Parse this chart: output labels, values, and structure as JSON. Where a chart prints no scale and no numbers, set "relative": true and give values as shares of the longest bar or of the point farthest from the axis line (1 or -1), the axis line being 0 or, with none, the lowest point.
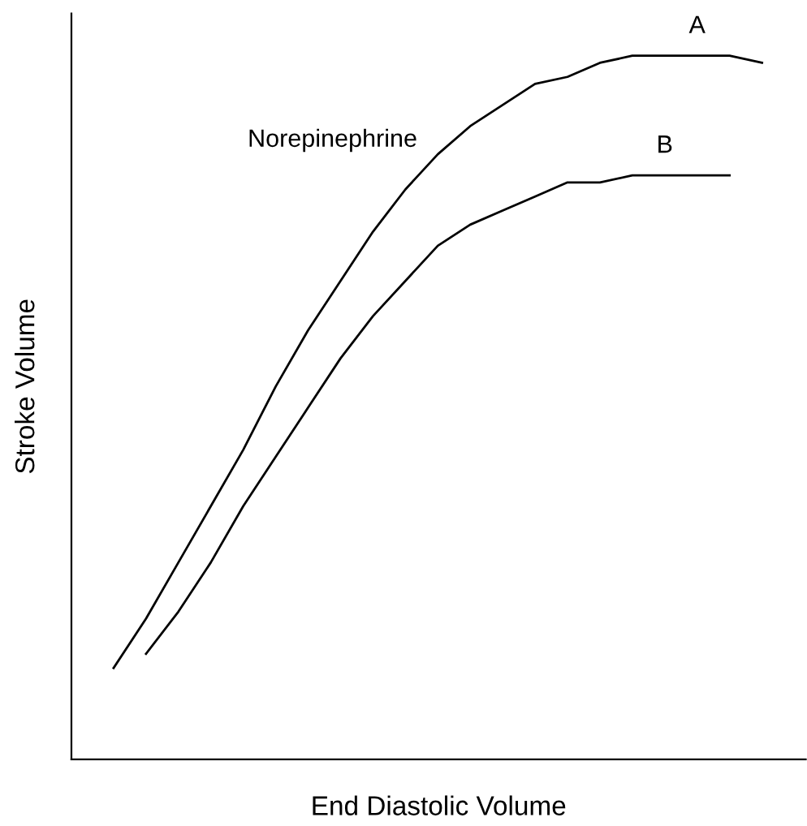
{
  "chart_data": {
    "type": "line",
    "relative": true,
    "xlabel": "End Diastolic Volume",
    "ylabel": "Stroke Volume",
    "categories": [
      null,
      null,
      null,
      null,
      null,
      null,
      null,
      null,
      null,
      null,
      null,
      null,
      null,
      null,
      null,
      null,
      null,
      null,
      null,
      null,
      null
    ],
    "series": [
      {
        "name": "A",
        "color": "#000000",
        "values": [
          0.13,
          0.2,
          0.28,
          0.36,
          0.44,
          0.53,
          0.61,
          0.68,
          0.75,
          0.81,
          0.86,
          0.9,
          0.93,
          0.96,
          0.97,
          0.99,
          1.0,
          1.0,
          1.0,
          1.0,
          0.99
        ]
      },
      {
        "name": "B",
        "color": "#000000",
        "values": [
          null,
          0.15,
          0.21,
          0.28,
          0.36,
          0.43,
          0.5,
          0.57,
          0.63,
          0.68,
          0.73,
          0.76,
          0.78,
          0.8,
          0.82,
          0.82,
          0.83,
          0.83,
          0.83,
          0.83,
          null
        ]
      }
    ],
    "annotations": [
      "Norepinephrine"
    ],
    "legend": false,
    "tick_labels": false
  }
}
